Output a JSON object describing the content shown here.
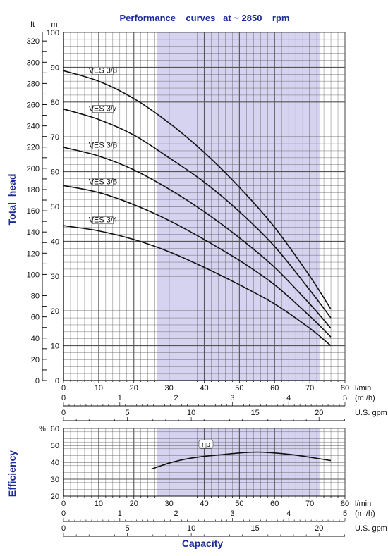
{
  "colors": {
    "title": "#1c2a9a",
    "band": "#d5d3f0",
    "grid": "#555555",
    "curve": "#111111"
  },
  "chart_data": [
    {
      "type": "line",
      "title": "Performance    curves   at ~ 2850    rpm",
      "ylabel": "Total  head",
      "y_unit_ft": "ft",
      "y_unit_m": "m",
      "ylim_m": [
        0,
        100
      ],
      "ylim_ft": [
        0,
        330
      ],
      "y_ticks_m": [
        "0",
        "10",
        "20",
        "30",
        "40",
        "50",
        "60",
        "70",
        "80",
        "90",
        "100"
      ],
      "y_ticks_ft": [
        "0",
        "20",
        "40",
        "60",
        "80",
        "100",
        "120",
        "140",
        "160",
        "180",
        "200",
        "220",
        "240",
        "260",
        "280",
        "300",
        "320"
      ],
      "xlim_lmin": [
        0,
        80
      ],
      "shaded_range_lmin": [
        26.5,
        73
      ],
      "grid": true,
      "series": [
        {
          "name": "VES 3/8",
          "x": [
            0,
            10,
            20,
            30,
            40,
            50,
            60,
            70,
            76
          ],
          "y": [
            89,
            86,
            81,
            74,
            65.5,
            55.5,
            44,
            30,
            20.5
          ]
        },
        {
          "name": "VES 3/7",
          "x": [
            0,
            10,
            20,
            30,
            40,
            50,
            60,
            70,
            76
          ],
          "y": [
            78,
            75,
            70.5,
            64,
            57,
            48.5,
            38.5,
            26,
            18
          ]
        },
        {
          "name": "VES 3/6",
          "x": [
            0,
            10,
            20,
            30,
            40,
            50,
            60,
            70,
            76
          ],
          "y": [
            67,
            64.5,
            60.5,
            55,
            48.5,
            41,
            32.5,
            22,
            15
          ]
        },
        {
          "name": "VES 3/5",
          "x": [
            0,
            10,
            20,
            30,
            40,
            50,
            60,
            70,
            76
          ],
          "y": [
            56,
            54,
            50.5,
            46,
            40.5,
            34.5,
            27.5,
            18.5,
            12.5
          ]
        },
        {
          "name": "VES 3/4",
          "x": [
            0,
            10,
            20,
            30,
            40,
            50,
            60,
            70,
            76
          ],
          "y": [
            44.5,
            43,
            40.5,
            37,
            32.5,
            27.5,
            22,
            15,
            10
          ]
        }
      ]
    },
    {
      "type": "line",
      "ylabel": "Efficiency",
      "y_unit": "%",
      "ylim": [
        20,
        60
      ],
      "y_ticks": [
        "20",
        "30",
        "40",
        "50",
        "60"
      ],
      "xlim_lmin": [
        0,
        80
      ],
      "shaded_range_lmin": [
        26.5,
        73
      ],
      "grid": true,
      "series": [
        {
          "name": "ηp",
          "x": [
            25,
            30,
            35,
            40,
            45,
            50,
            55,
            60,
            65,
            70,
            76
          ],
          "y": [
            36,
            39.5,
            42,
            43.5,
            44.5,
            45.5,
            46,
            45.5,
            44.5,
            43,
            41
          ]
        }
      ]
    }
  ],
  "axes": {
    "lmin": {
      "unit": "l/min",
      "ticks": [
        "0",
        "10",
        "20",
        "30",
        "40",
        "50",
        "60",
        "70",
        "80"
      ],
      "max": 80
    },
    "m3h": {
      "unit": "(m /h)",
      "ticks": [
        "0",
        "1",
        "2",
        "3",
        "4",
        "5"
      ],
      "max": 5
    },
    "gpm": {
      "unit": "U.S. gpm",
      "ticks": [
        "0",
        "5",
        "10",
        "15",
        "20"
      ],
      "max": 22.03
    }
  },
  "xlabel": "Capacity"
}
